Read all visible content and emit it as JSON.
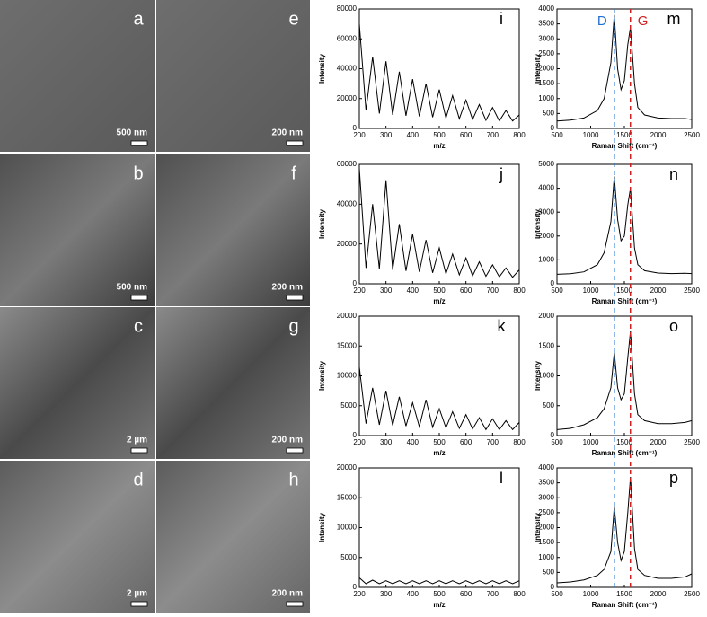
{
  "sem_panels": [
    {
      "label": "a",
      "scale_bar": "500 nm"
    },
    {
      "label": "b",
      "scale_bar": "500 nm"
    },
    {
      "label": "c",
      "scale_bar": "2 µm"
    },
    {
      "label": "d",
      "scale_bar": "2 µm"
    },
    {
      "label": "e",
      "scale_bar": "200 nm"
    },
    {
      "label": "f",
      "scale_bar": "200 nm"
    },
    {
      "label": "g",
      "scale_bar": "200 nm"
    },
    {
      "label": "h",
      "scale_bar": "200 nm"
    }
  ],
  "chart_data": [
    {
      "type": "line",
      "panel": "i",
      "x_label": "m/z",
      "y_label": "Intensity",
      "color": "#000000",
      "x": [
        200,
        225,
        250,
        275,
        300,
        325,
        350,
        375,
        400,
        425,
        450,
        475,
        500,
        525,
        550,
        575,
        600,
        625,
        650,
        675,
        700,
        725,
        750,
        775,
        800
      ],
      "values": [
        70000,
        12000,
        48000,
        10000,
        45000,
        9000,
        38000,
        8500,
        33000,
        8000,
        30000,
        7500,
        26000,
        7000,
        22000,
        6500,
        19000,
        6000,
        16000,
        5500,
        14000,
        5000,
        12000,
        5000,
        9000
      ],
      "xlim": [
        200,
        800
      ],
      "xticks": [
        200,
        300,
        400,
        500,
        600,
        700,
        800
      ],
      "ylim": [
        0,
        80000
      ],
      "yticks": [
        0,
        20000,
        40000,
        60000,
        80000
      ]
    },
    {
      "type": "line",
      "panel": "j",
      "x_label": "m/z",
      "y_label": "Intensity",
      "color": "#000000",
      "x": [
        200,
        225,
        250,
        275,
        300,
        325,
        350,
        375,
        400,
        425,
        450,
        475,
        500,
        525,
        550,
        575,
        600,
        625,
        650,
        675,
        700,
        725,
        750,
        775,
        800
      ],
      "values": [
        58000,
        8000,
        40000,
        7500,
        52000,
        7000,
        30000,
        6500,
        25000,
        6000,
        22000,
        5500,
        18000,
        5000,
        15000,
        4500,
        13000,
        4000,
        11000,
        3800,
        9500,
        3500,
        8000,
        3300,
        7000
      ],
      "xlim": [
        200,
        800
      ],
      "xticks": [
        200,
        300,
        400,
        500,
        600,
        700,
        800
      ],
      "ylim": [
        0,
        60000
      ],
      "yticks": [
        0,
        20000,
        40000,
        60000
      ]
    },
    {
      "type": "line",
      "panel": "k",
      "x_label": "m/z",
      "y_label": "Intensity",
      "color": "#000000",
      "x": [
        200,
        225,
        250,
        275,
        300,
        325,
        350,
        375,
        400,
        425,
        450,
        475,
        500,
        525,
        550,
        575,
        600,
        625,
        650,
        675,
        700,
        725,
        750,
        775,
        800
      ],
      "values": [
        11500,
        2000,
        8000,
        1800,
        7500,
        1700,
        6500,
        1600,
        5500,
        1500,
        6000,
        1400,
        4500,
        1300,
        4000,
        1200,
        3500,
        1100,
        3000,
        1000,
        2800,
        1000,
        2500,
        1000,
        2200
      ],
      "xlim": [
        200,
        800
      ],
      "xticks": [
        200,
        300,
        400,
        500,
        600,
        700,
        800
      ],
      "ylim": [
        0,
        20000
      ],
      "yticks": [
        0,
        5000,
        10000,
        15000,
        20000
      ]
    },
    {
      "type": "line",
      "panel": "l",
      "x_label": "m/z",
      "y_label": "Intensity",
      "color": "#000000",
      "x": [
        200,
        225,
        250,
        275,
        300,
        325,
        350,
        375,
        400,
        425,
        450,
        475,
        500,
        525,
        550,
        575,
        600,
        625,
        650,
        675,
        700,
        725,
        750,
        775,
        800
      ],
      "values": [
        1600,
        600,
        1200,
        600,
        1100,
        600,
        1100,
        600,
        1100,
        600,
        1100,
        600,
        1100,
        600,
        1100,
        600,
        1100,
        600,
        1100,
        600,
        1100,
        600,
        1100,
        600,
        1100
      ],
      "xlim": [
        200,
        800
      ],
      "xticks": [
        200,
        300,
        400,
        500,
        600,
        700,
        800
      ],
      "ylim": [
        0,
        20000
      ],
      "yticks": [
        0,
        5000,
        10000,
        15000,
        20000
      ]
    },
    {
      "type": "line",
      "panel": "m",
      "x_label": "Raman Shift (cm⁻¹)",
      "y_label": "Intensity",
      "color": "#000000",
      "x": [
        500,
        700,
        900,
        1100,
        1200,
        1300,
        1350,
        1400,
        1450,
        1500,
        1550,
        1590,
        1650,
        1700,
        1800,
        2000,
        2200,
        2400,
        2500
      ],
      "values": [
        250,
        280,
        350,
        600,
        1000,
        2200,
        3800,
        2000,
        1300,
        1600,
        2800,
        3400,
        1500,
        700,
        450,
        350,
        330,
        330,
        300
      ],
      "xlim": [
        500,
        2500
      ],
      "xticks": [
        500,
        1000,
        1500,
        2000,
        2500
      ],
      "ylim": [
        0,
        4000
      ],
      "yticks": [
        0,
        500,
        1000,
        1500,
        2000,
        2500,
        3000,
        3500,
        4000
      ],
      "reference_lines": [
        {
          "label": "D",
          "x": 1350,
          "color": "#1f6fd0"
        },
        {
          "label": "G",
          "x": 1590,
          "color": "#d02020"
        }
      ]
    },
    {
      "type": "line",
      "panel": "n",
      "x_label": "Raman Shift (cm⁻¹)",
      "y_label": "Intensity",
      "color": "#000000",
      "x": [
        500,
        700,
        900,
        1100,
        1200,
        1300,
        1350,
        1400,
        1450,
        1500,
        1550,
        1590,
        1650,
        1700,
        1800,
        2000,
        2200,
        2400,
        2500
      ],
      "values": [
        400,
        420,
        500,
        800,
        1300,
        2600,
        4500,
        2700,
        1800,
        2000,
        3300,
        4000,
        1500,
        800,
        550,
        450,
        430,
        440,
        430
      ],
      "xlim": [
        500,
        2500
      ],
      "xticks": [
        500,
        1000,
        1500,
        2000,
        2500
      ],
      "ylim": [
        0,
        5000
      ],
      "yticks": [
        0,
        1000,
        2000,
        3000,
        4000,
        5000
      ]
    },
    {
      "type": "line",
      "panel": "o",
      "x_label": "Raman Shift (cm⁻¹)",
      "y_label": "Intensity",
      "color": "#000000",
      "x": [
        500,
        700,
        900,
        1100,
        1200,
        1300,
        1350,
        1400,
        1450,
        1500,
        1550,
        1590,
        1650,
        1700,
        1800,
        2000,
        2200,
        2400,
        2500
      ],
      "values": [
        100,
        120,
        180,
        300,
        450,
        800,
        1400,
        800,
        600,
        700,
        1300,
        1750,
        700,
        350,
        250,
        200,
        200,
        220,
        250
      ],
      "xlim": [
        500,
        2500
      ],
      "xticks": [
        500,
        1000,
        1500,
        2000,
        2500
      ],
      "ylim": [
        0,
        2000
      ],
      "yticks": [
        0,
        500,
        1000,
        1500,
        2000
      ]
    },
    {
      "type": "line",
      "panel": "p",
      "x_label": "Raman Shift (cm⁻¹)",
      "y_label": "Intensity",
      "color": "#000000",
      "x": [
        500,
        700,
        900,
        1100,
        1200,
        1300,
        1350,
        1400,
        1450,
        1500,
        1550,
        1590,
        1650,
        1700,
        1800,
        2000,
        2200,
        2400,
        2500
      ],
      "values": [
        150,
        180,
        250,
        400,
        600,
        1200,
        2700,
        1500,
        900,
        1200,
        2500,
        3700,
        1300,
        600,
        400,
        300,
        300,
        350,
        450
      ],
      "xlim": [
        500,
        2500
      ],
      "xticks": [
        500,
        1000,
        1500,
        2000,
        2500
      ],
      "ylim": [
        0,
        4000
      ],
      "yticks": [
        0,
        500,
        1000,
        1500,
        2000,
        2500,
        3000,
        3500,
        4000
      ]
    }
  ]
}
